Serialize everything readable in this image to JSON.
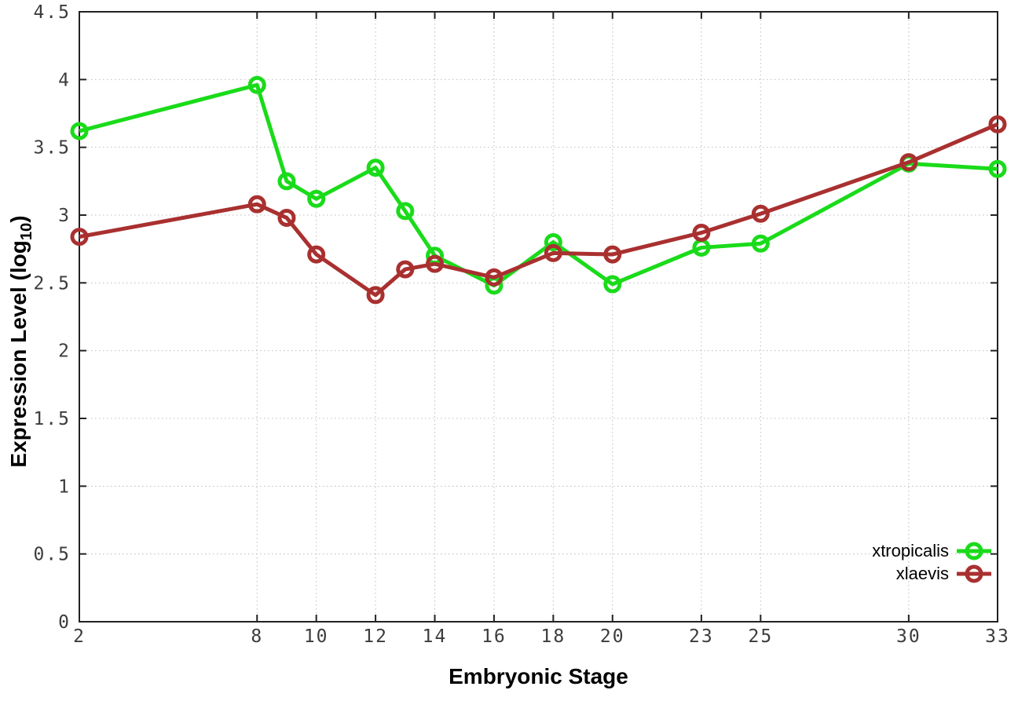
{
  "chart_data": {
    "type": "line",
    "title": "",
    "xlabel": "Embryonic Stage",
    "ylabel": "Expression Level (log10)",
    "ylabel_prefix": "Expression Level (log",
    "ylabel_sub": "10",
    "ylabel_suffix": ")",
    "x": [
      2,
      8,
      9,
      10,
      12,
      13,
      14,
      16,
      18,
      20,
      23,
      25,
      30,
      33
    ],
    "series": [
      {
        "name": "xtropicalis",
        "color": "#1adb1a",
        "values": [
          3.62,
          3.96,
          3.25,
          3.12,
          3.35,
          3.03,
          2.7,
          2.48,
          2.8,
          2.49,
          2.76,
          2.79,
          3.38,
          3.34
        ]
      },
      {
        "name": "xlaevis",
        "color": "#a93030",
        "values": [
          2.84,
          3.08,
          2.98,
          2.71,
          2.41,
          2.6,
          2.64,
          2.54,
          2.72,
          2.71,
          2.87,
          3.01,
          3.39,
          3.67
        ]
      }
    ],
    "xticks": [
      2,
      8,
      10,
      12,
      14,
      16,
      18,
      20,
      23,
      25,
      30,
      33
    ],
    "yticks": [
      0,
      0.5,
      1,
      1.5,
      2,
      2.5,
      3,
      3.5,
      4,
      4.5
    ],
    "ytick_labels": [
      "0",
      "0.5",
      "1",
      "1.5",
      "2",
      "2.5",
      "3",
      "3.5",
      "4",
      "4.5"
    ],
    "xlim": [
      2,
      33
    ],
    "ylim": [
      0,
      4.5
    ],
    "grid": true,
    "legend_position": "bottom-right",
    "colors": {
      "grid": "#bcbcbc",
      "border": "#222222",
      "tick_label": "#3c3c3c"
    }
  }
}
